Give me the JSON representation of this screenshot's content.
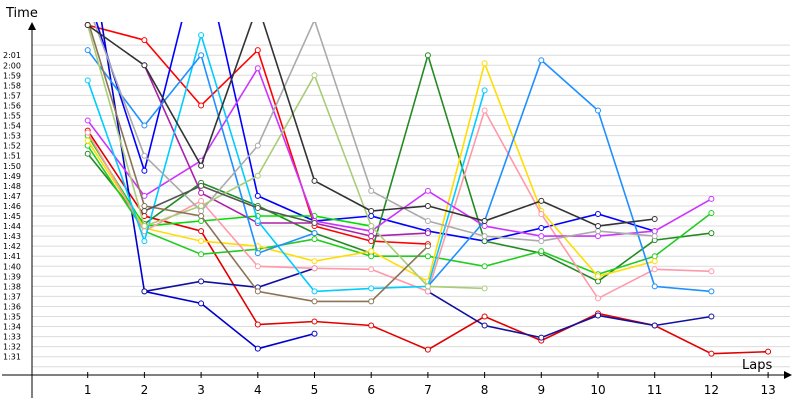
{
  "chart_data": {
    "type": "line",
    "title": "",
    "xlabel": "Laps",
    "ylabel": "Time",
    "x": [
      1,
      2,
      3,
      4,
      5,
      6,
      7,
      8,
      9,
      10,
      11,
      12,
      13
    ],
    "x_tick_labels": [
      "1",
      "2",
      "3",
      "4",
      "5",
      "6",
      "7",
      "8",
      "9",
      "10",
      "11",
      "12",
      "13"
    ],
    "y_tick_labels": [
      "1:31",
      "1:32",
      "1:33",
      "1:34",
      "1:35",
      "1:36",
      "1:37",
      "1:38",
      "1:39",
      "1:40",
      "1:41",
      "1:42",
      "1:43",
      "1:44",
      "1:45",
      "1:46",
      "1:47",
      "1:48",
      "1:49",
      "1:50",
      "1:51",
      "1:52",
      "1:53",
      "1:54",
      "1:55",
      "1:56",
      "1:57",
      "1:58",
      "1:59",
      "2:00",
      "2:01"
    ],
    "y_unit": "seconds",
    "ylim": [
      90,
      122
    ],
    "xlim": [
      0,
      14
    ],
    "grid": true,
    "legend": "none",
    "series": [
      {
        "color": "#ff0000",
        "values": [
          124,
          122.5,
          116,
          121.5,
          104,
          102.5,
          102.2,
          null,
          null,
          null,
          null,
          null,
          null
        ]
      },
      {
        "color": "#e00000",
        "values": [
          113.5,
          105,
          103.5,
          94.2,
          94.5,
          94.1,
          91.7,
          95,
          92.6,
          95.3,
          94.1,
          91.3,
          91.5
        ]
      },
      {
        "color": "#0000cc",
        "values": [
          133,
          97.5,
          96.3,
          91.8,
          93.3,
          null,
          null,
          null,
          null,
          null,
          null,
          null,
          null
        ]
      },
      {
        "color": "#1010a0",
        "values": [
          null,
          97.5,
          98.5,
          97.9,
          99.8,
          null,
          97.5,
          94.1,
          92.9,
          95.1,
          94.1,
          95,
          null
        ]
      },
      {
        "color": "#0000ff",
        "values": [
          127,
          109.5,
          132,
          107,
          104.5,
          105,
          103.5,
          102.5,
          103.8,
          105.2,
          103.5,
          null,
          null
        ]
      },
      {
        "color": "#228b22",
        "values": [
          111.2,
          104.2,
          108.3,
          106,
          103.3,
          101.3,
          121,
          102.5,
          101.3,
          98.5,
          102.6,
          103.3,
          null
        ]
      },
      {
        "color": "#22cc22",
        "values": [
          112,
          103.5,
          101.2,
          101.7,
          102.7,
          101,
          101,
          100,
          101.5,
          99.2,
          101,
          105.3,
          null
        ]
      },
      {
        "color": "#00dd00",
        "values": [
          113,
          104,
          104.5,
          105,
          105,
          104,
          null,
          null,
          null,
          null,
          null,
          null,
          null
        ]
      },
      {
        "color": "#ffdd00",
        "values": [
          112.5,
          103.8,
          102.5,
          102,
          100.5,
          101.5,
          98.5,
          120.2,
          105.5,
          99,
          100.5,
          null,
          null
        ]
      },
      {
        "color": "#ff99aa",
        "values": [
          113.3,
          103.5,
          106.5,
          100,
          99.8,
          99.7,
          97.5,
          115.5,
          105.2,
          96.8,
          99.7,
          99.5,
          null
        ]
      },
      {
        "color": "#cc33ff",
        "values": [
          114.5,
          107,
          110.5,
          119.7,
          104.5,
          103.5,
          107.5,
          104,
          103,
          103,
          103.5,
          106.7,
          null
        ]
      },
      {
        "color": "#aa22aa",
        "values": [
          null,
          120,
          107.3,
          104.3,
          104.3,
          103,
          103.3,
          null,
          null,
          null,
          null,
          null,
          null
        ]
      },
      {
        "color": "#00ccff",
        "values": [
          118.5,
          102.5,
          123,
          104.5,
          97.5,
          97.8,
          98,
          117.5,
          null,
          null,
          null,
          null,
          null
        ]
      },
      {
        "color": "#1e90ff",
        "values": [
          121.5,
          114,
          121,
          101.3,
          103.3,
          null,
          98,
          104.5,
          120.5,
          115.5,
          98,
          97.5,
          null
        ]
      },
      {
        "color": "#808080",
        "values": null
      },
      {
        "color": "#aaaaaa",
        "values": [
          126,
          111,
          105.5,
          112,
          124.5,
          107.5,
          104.5,
          103,
          102.5,
          103.5,
          103,
          null,
          null
        ]
      },
      {
        "color": "#aacc77",
        "values": [
          124,
          104,
          106,
          109,
          119,
          104,
          98,
          97.8,
          null,
          null,
          null,
          null,
          null
        ]
      },
      {
        "color": "#8b7355",
        "values": [
          124.5,
          106,
          105,
          97.5,
          96.5,
          96.5,
          102,
          null,
          null,
          null,
          null,
          null,
          null
        ]
      },
      {
        "color": "#333333",
        "values": [
          124,
          120,
          110,
          126,
          108.5,
          105.5,
          106,
          104.5,
          106.5,
          104,
          104.7,
          null,
          null
        ]
      },
      {
        "color": "#555555",
        "values": [
          null,
          105.5,
          108,
          105.8,
          104.3,
          null,
          null,
          null,
          null,
          null,
          null,
          null,
          null
        ]
      }
    ]
  }
}
